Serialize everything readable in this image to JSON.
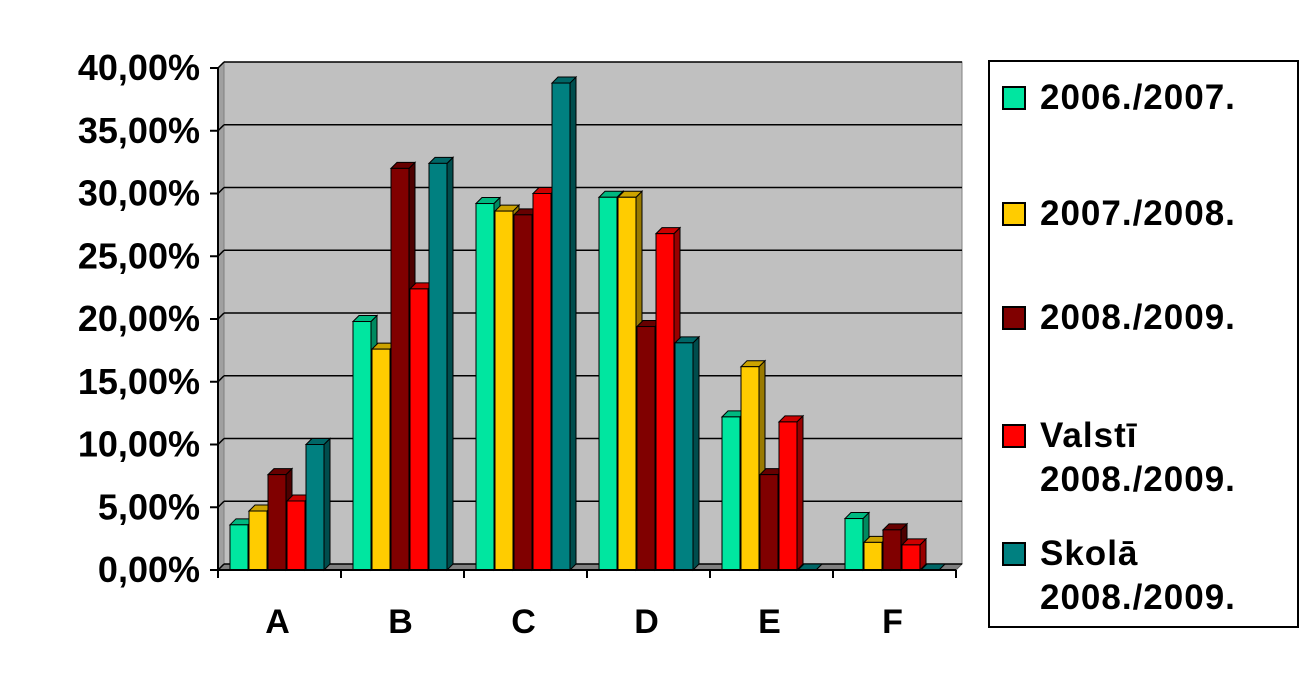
{
  "chart_data": {
    "type": "bar",
    "title": "",
    "xlabel": "",
    "ylabel": "",
    "categories": [
      "A",
      "B",
      "C",
      "D",
      "E",
      "F"
    ],
    "ylim": [
      0,
      0.4
    ],
    "yticks": [
      "0,00%",
      "5,00%",
      "10,00%",
      "15,00%",
      "20,00%",
      "25,00%",
      "30,00%",
      "35,00%",
      "40,00%"
    ],
    "grid": true,
    "legend_position": "right",
    "series": [
      {
        "name": "2006./2007.",
        "color": "#00E6A0",
        "values": [
          0.036,
          0.198,
          0.292,
          0.297,
          0.122,
          0.041
        ]
      },
      {
        "name": "2007./2008.",
        "color": "#FFCC00",
        "values": [
          0.047,
          0.176,
          0.286,
          0.297,
          0.162,
          0.022
        ]
      },
      {
        "name": "2008./2009.",
        "color": "#800000",
        "values": [
          0.076,
          0.32,
          0.283,
          0.194,
          0.076,
          0.032
        ]
      },
      {
        "name": "Valstī\n2008./2009.",
        "color": "#FF0000",
        "values": [
          0.055,
          0.224,
          0.3,
          0.268,
          0.118,
          0.02
        ]
      },
      {
        "name": "Skolā\n2008./2009.",
        "color": "#008080",
        "values": [
          0.1,
          0.324,
          0.388,
          0.181,
          0.0,
          0.0
        ]
      }
    ]
  }
}
